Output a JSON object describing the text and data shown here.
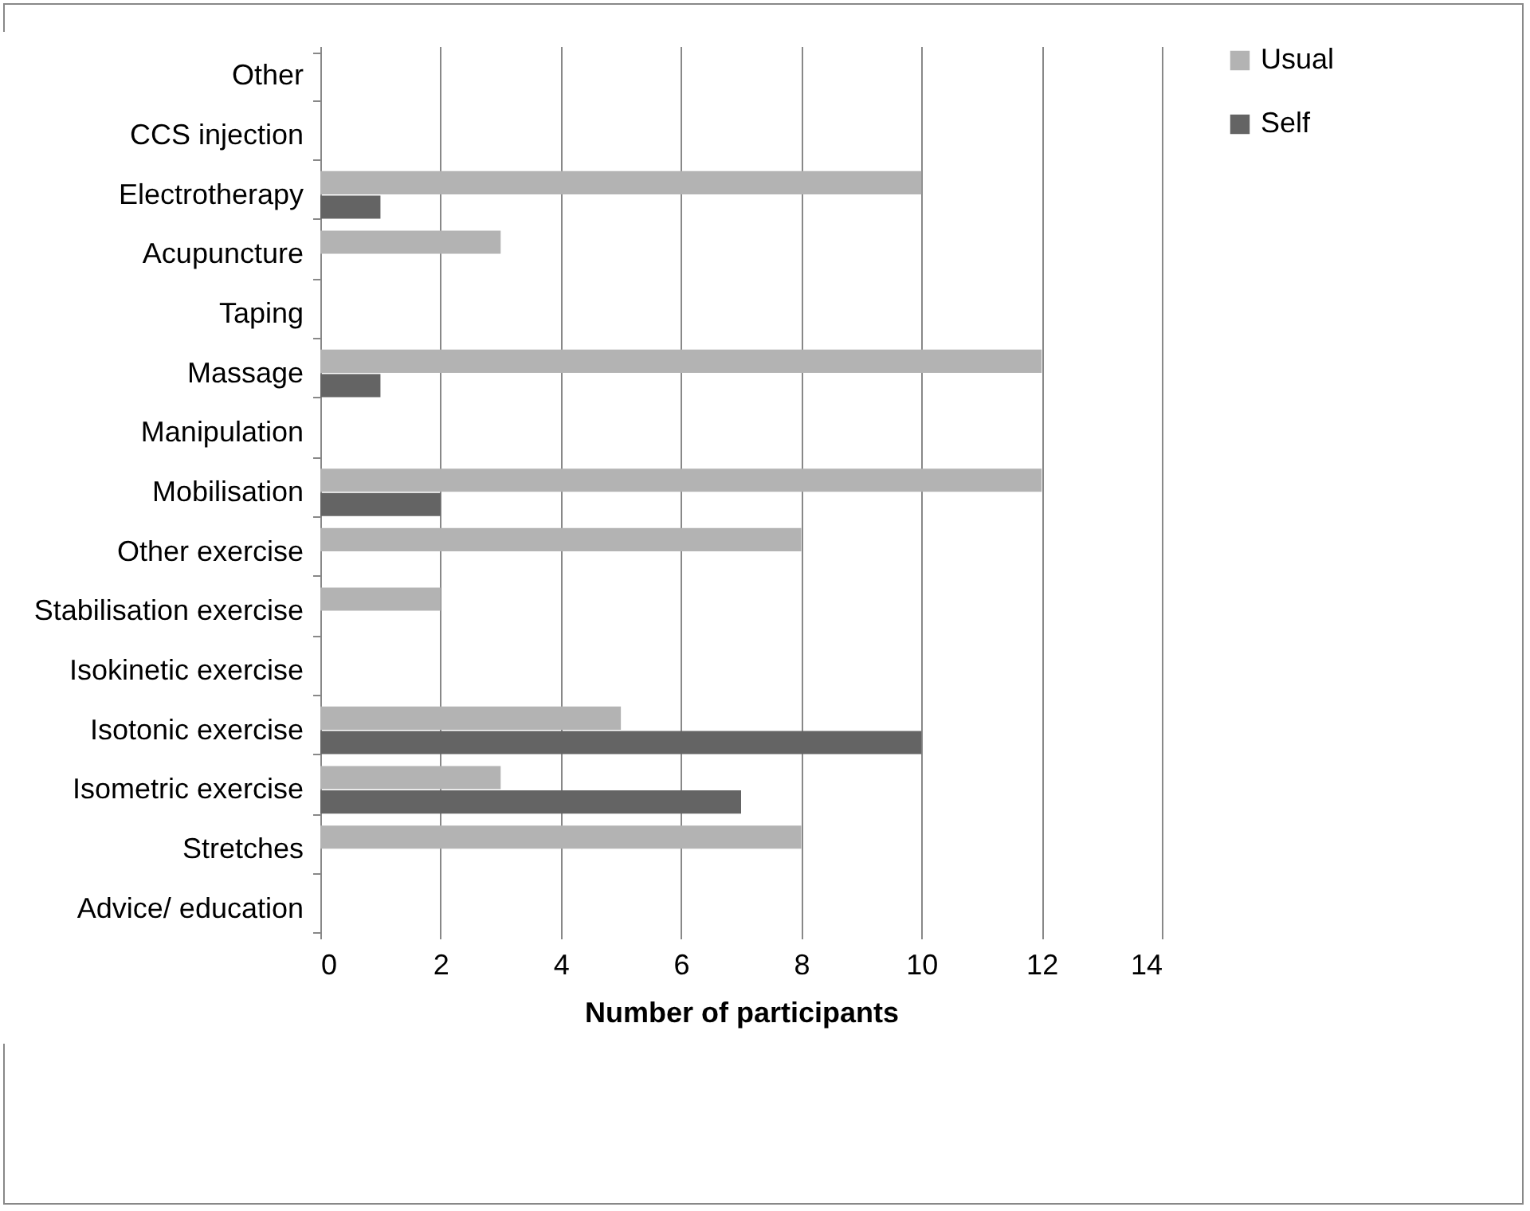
{
  "chart_data": {
    "type": "bar",
    "orientation": "horizontal",
    "xlabel": "Number of participants",
    "categories": [
      "Other",
      "CCS injection",
      "Electrotherapy",
      "Acupuncture",
      "Taping",
      "Massage",
      "Manipulation",
      "Mobilisation",
      "Other exercise",
      "Stabilisation exercise",
      "Isokinetic exercise",
      "Isotonic exercise",
      "Isometric exercise",
      "Stretches",
      "Advice/ education"
    ],
    "series": [
      {
        "name": "Usual",
        "color": "#b3b3b3",
        "values": [
          0,
          0,
          10,
          3,
          0,
          12,
          0,
          12,
          8,
          2,
          0,
          5,
          3,
          8,
          0
        ]
      },
      {
        "name": "Self",
        "color": "#646464",
        "values": [
          0,
          0,
          1,
          0,
          0,
          1,
          0,
          2,
          0,
          0,
          0,
          10,
          7,
          0,
          0
        ]
      }
    ],
    "xlim": [
      0,
      14
    ],
    "xticks": [
      0,
      2,
      4,
      6,
      8,
      10,
      12,
      14
    ],
    "grid": "x",
    "legend": "right"
  }
}
